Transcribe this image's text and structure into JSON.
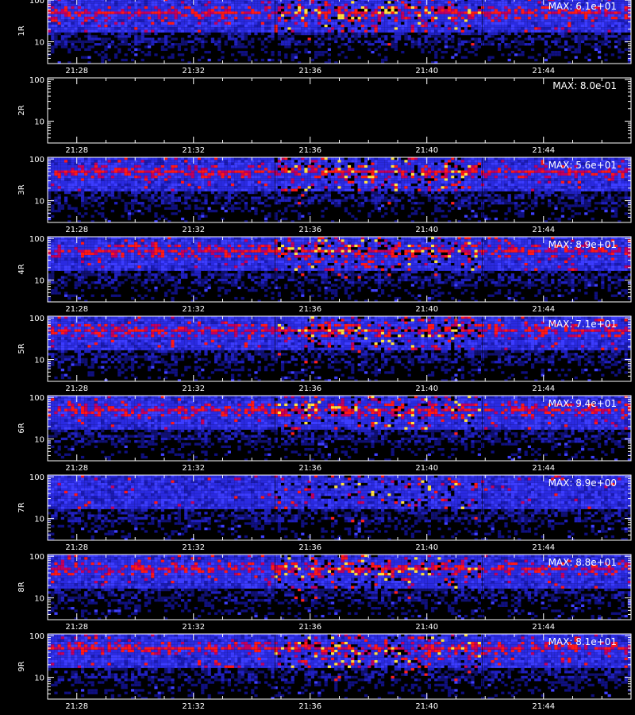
{
  "chart_data": {
    "type": "heatmap",
    "panel_labels": [
      "1R",
      "2R",
      "3R",
      "4R",
      "5R",
      "6R",
      "7R",
      "8R",
      "9R"
    ],
    "max_labels": [
      "MAX: 6.1e+01",
      "MAX: 8.0e-01",
      "MAX: 5.6e+01",
      "MAX: 8.9e+01",
      "MAX: 7.1e+01",
      "MAX: 9.4e+01",
      "MAX: 8.9e+00",
      "MAX: 8.8e+01",
      "MAX: 8.1e+01"
    ],
    "max_values": [
      61,
      0.8,
      56,
      89,
      71,
      94,
      8.9,
      88,
      81
    ],
    "x_ticks": [
      "21:28",
      "21:32",
      "21:36",
      "21:40",
      "21:44"
    ],
    "x_tick_minutes": [
      28,
      32,
      36,
      40,
      44
    ],
    "x_range_minutes": [
      27.0,
      47.0
    ],
    "y_ticks": [
      "10",
      "100"
    ],
    "y_tick_values": [
      10,
      100
    ],
    "y_scale": "log",
    "y_range": [
      3,
      110
    ],
    "active_segment_minutes": [
      34.8,
      41.9
    ],
    "hot_band_y": 50,
    "colors": {
      "background": "#000000",
      "low": "#1010c0",
      "mid": "#3838ff",
      "high": "#ff1010",
      "peak": "#ffff60",
      "axis": "#ffffff"
    }
  }
}
